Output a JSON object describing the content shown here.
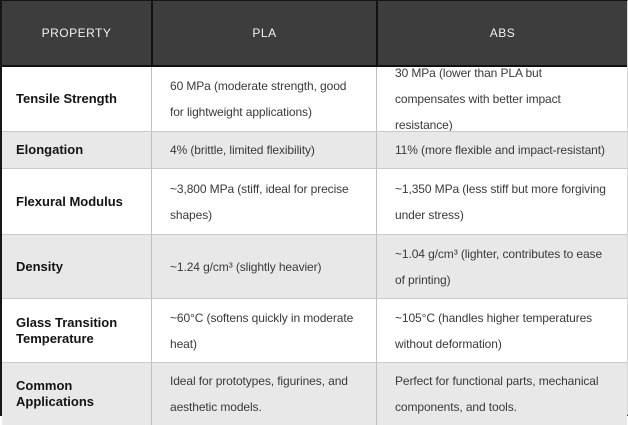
{
  "chart_data": {
    "type": "table",
    "columns": [
      "PROPERTY",
      "PLA",
      "ABS"
    ],
    "rows": [
      {
        "property": "Tensile Strength",
        "pla": "60 MPa (moderate strength, good for lightweight applications)",
        "abs": "30 MPa (lower than PLA but compensates with better impact resistance)"
      },
      {
        "property": "Elongation",
        "pla": "4% (brittle, limited flexibility)",
        "abs": "11% (more flexible and impact-resistant)"
      },
      {
        "property": "Flexural Modulus",
        "pla": "~3,800 MPa (stiff, ideal for precise shapes)",
        "abs": "~1,350 MPa (less stiff but more forgiving under stress)"
      },
      {
        "property": "Density",
        "pla": "~1.24 g/cm³ (slightly heavier)",
        "abs": "~1.04 g/cm³ (lighter, contributes to ease of printing)"
      },
      {
        "property": "Glass Transition Temperature",
        "pla": "~60°C (softens quickly in moderate heat)",
        "abs": "~105°C (handles higher temperatures without deformation)"
      },
      {
        "property": "Common Applications",
        "pla": "Ideal for prototypes, figurines, and aesthetic models.",
        "abs": "Perfect for functional parts, mechanical components, and tools."
      }
    ],
    "layout": {
      "zebra_striping": true,
      "header_style": "dark",
      "colors": {
        "header_bg": "#3d3d3d",
        "header_text": "#f2f2f2",
        "row_bg": "#ffffff",
        "row_alt_bg": "#e8e8e8",
        "outer_border": "#161616",
        "inner_border": "#c0c0c0",
        "label_text": "#141414",
        "value_text": "#3a3a3a"
      }
    }
  }
}
